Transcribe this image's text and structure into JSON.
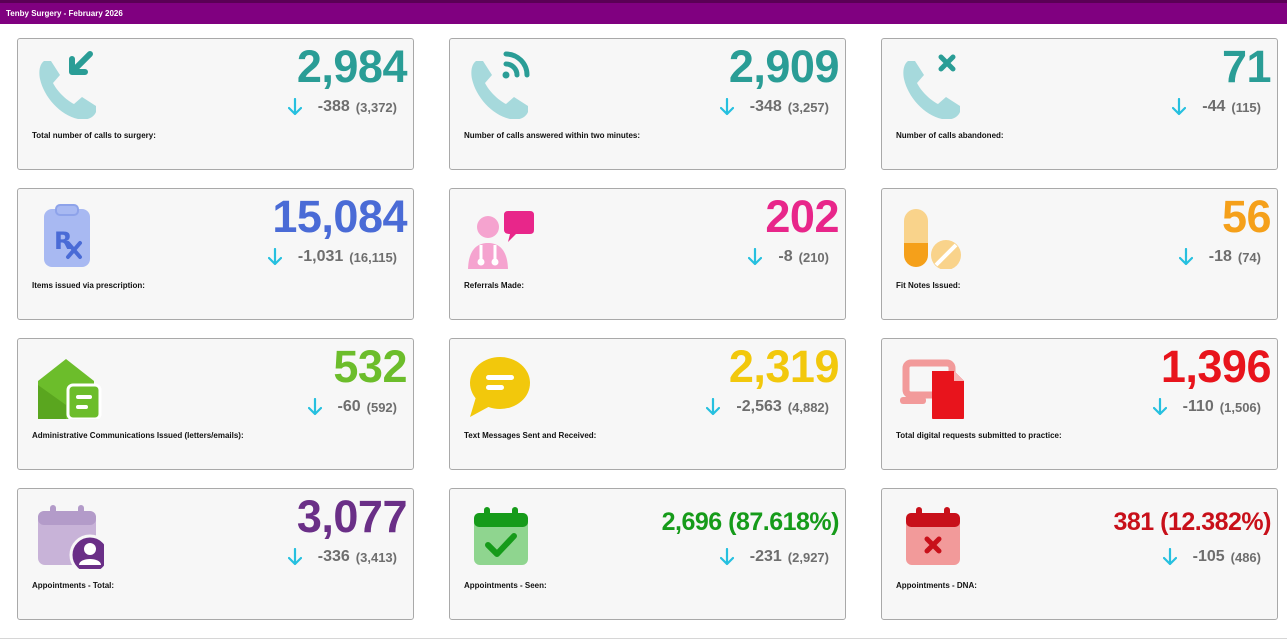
{
  "header": {
    "title": "Tenby Surgery - February 2026"
  },
  "cards": [
    {
      "value": "2,984",
      "delta": "-388",
      "prev": "(3,372)",
      "label": "Total number of calls to surgery:",
      "color": "#2a9d96",
      "icon": "incoming-call-icon"
    },
    {
      "value": "2,909",
      "delta": "-348",
      "prev": "(3,257)",
      "label": "Number of calls answered within two minutes:",
      "color": "#2a9d96",
      "icon": "call-answered-icon"
    },
    {
      "value": "71",
      "delta": "-44",
      "prev": "(115)",
      "label": "Number of calls abandoned:",
      "color": "#2a9d96",
      "icon": "call-abandoned-icon"
    },
    {
      "value": "15,084",
      "delta": "-1,031",
      "prev": "(16,115)",
      "label": "Items issued via prescription:",
      "color": "#4a6bd6",
      "icon": "prescription-icon"
    },
    {
      "value": "202",
      "delta": "-8",
      "prev": "(210)",
      "label": "Referrals Made:",
      "color": "#e8268a",
      "icon": "referral-icon"
    },
    {
      "value": "56",
      "delta": "-18",
      "prev": "(74)",
      "label": "Fit Notes Issued:",
      "color": "#f5a01a",
      "icon": "pills-icon"
    },
    {
      "value": "532",
      "delta": "-60",
      "prev": "(592)",
      "label": "Administrative Communications Issued (letters/emails):",
      "color": "#6cbd2b",
      "icon": "mail-icon"
    },
    {
      "value": "2,319",
      "delta": "-2,563",
      "prev": "(4,882)",
      "label": "Text Messages Sent and Received:",
      "color": "#f2c80c",
      "icon": "message-icon"
    },
    {
      "value": "1,396",
      "delta": "-110",
      "prev": "(1,506)",
      "label": "Total digital requests submitted to practice:",
      "color": "#e8141c",
      "icon": "digital-request-icon"
    },
    {
      "value": "3,077",
      "delta": "-336",
      "prev": "(3,413)",
      "label": "Appointments - Total:",
      "color": "#6a2f87",
      "icon": "calendar-user-icon"
    },
    {
      "value": "2,696",
      "pct": "(87.618%)",
      "delta": "-231",
      "prev": "(2,927)",
      "label": "Appointments - Seen:",
      "color": "#169b1a",
      "icon": "calendar-check-icon"
    },
    {
      "value": "381",
      "pct": "(12.382%)",
      "delta": "-105",
      "prev": "(486)",
      "label": "Appointments - DNA:",
      "color": "#c8101a",
      "icon": "calendar-cross-icon"
    }
  ],
  "colors": {
    "header": "#800080",
    "arrow": "#26c0df",
    "muted": "#6e6e6e"
  }
}
